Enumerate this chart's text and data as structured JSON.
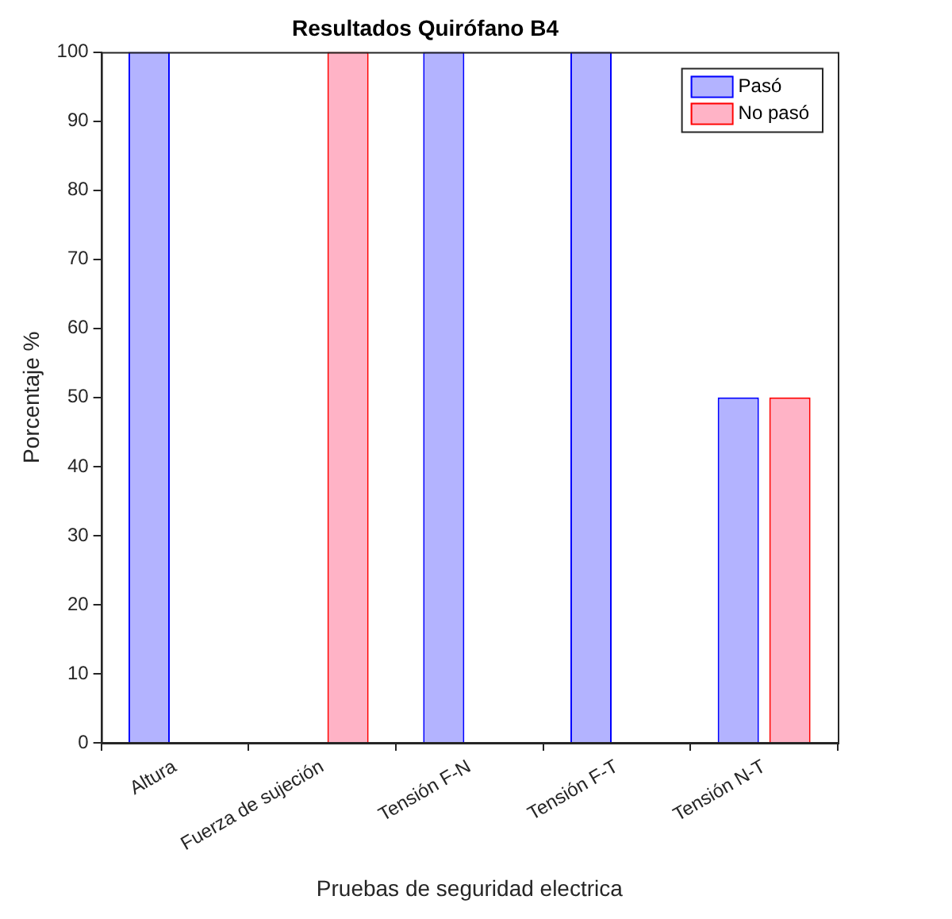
{
  "chart_data": {
    "type": "bar",
    "title": "Resultados Quirófano B4",
    "xlabel": "Pruebas de seguridad electrica",
    "ylabel": "Porcentaje %",
    "categories": [
      "Altura",
      "Fuerza de sujeción",
      "Tensión F-N",
      "Tensión F-T",
      "Tensión N-T"
    ],
    "series": [
      {
        "name": "Pasó",
        "color": "#b3b3ff",
        "values": [
          100,
          0,
          100,
          100,
          50
        ]
      },
      {
        "name": "No pasó",
        "color": "#ffb3c6",
        "values": [
          0,
          100,
          0,
          0,
          50
        ]
      }
    ],
    "ylim": [
      0,
      100
    ],
    "yticks": [
      0,
      10,
      20,
      30,
      40,
      50,
      60,
      70,
      80,
      90,
      100
    ],
    "grid": false,
    "legend": "top right"
  }
}
